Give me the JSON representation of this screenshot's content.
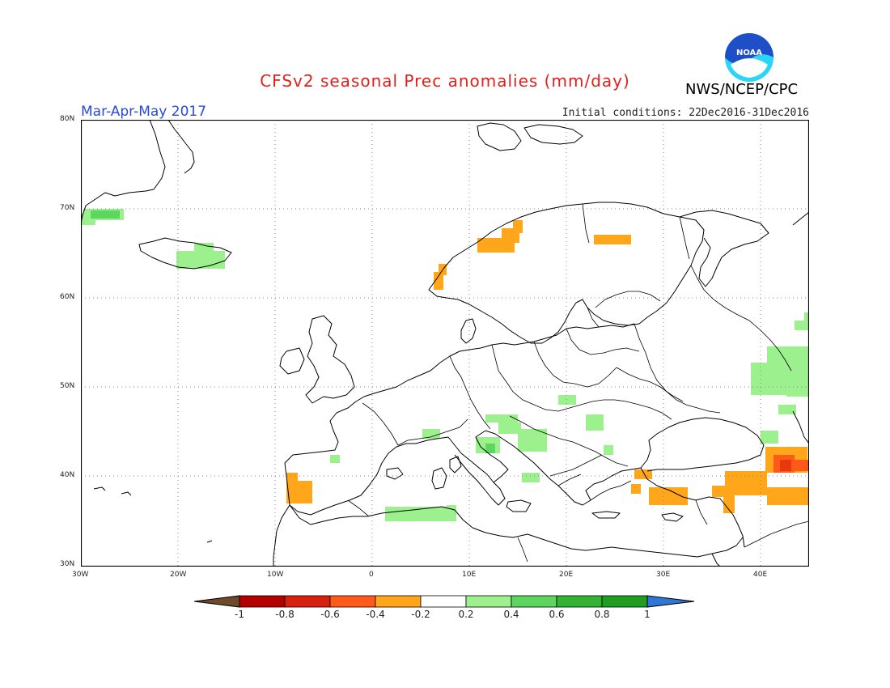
{
  "header": {
    "title": "CFSv2 seasonal Prec anomalies (mm/day)",
    "period": "Mar-Apr-May 2017",
    "initial_conditions": "Initial conditions: 22Dec2016-31Dec2016",
    "agency": "NWS/NCEP/CPC",
    "logo_text": "NOAA"
  },
  "map": {
    "lat_labels": [
      "80N",
      "70N",
      "60N",
      "50N",
      "40N",
      "30N"
    ],
    "lon_labels": [
      "30W",
      "20W",
      "10W",
      "0",
      "10E",
      "20E",
      "30E",
      "40E"
    ],
    "gridlines": true
  },
  "colorbar": {
    "labels": [
      "-1",
      "-0.8",
      "-0.6",
      "-0.4",
      "-0.2",
      "0.2",
      "0.4",
      "0.6",
      "0.8",
      "1"
    ],
    "colors": [
      "#6e4a2a",
      "#b30000",
      "#d8200e",
      "#ff5a1a",
      "#ffa61a",
      "#ffffff",
      "#9cf08e",
      "#5cd65c",
      "#33b233",
      "#1f9e1f",
      "#2f77d6"
    ]
  },
  "colors": {
    "title": "#e0201a",
    "period": "#2a4bd7",
    "noaa_blue": "#1e4fc9",
    "noaa_cyan": "#2ad5f5"
  }
}
